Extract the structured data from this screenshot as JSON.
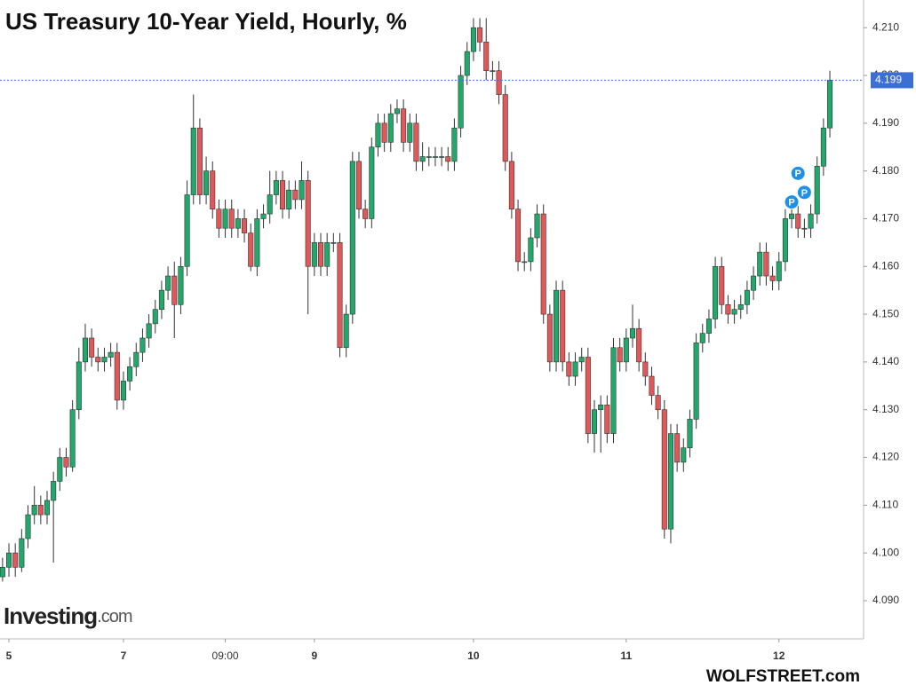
{
  "chart_data": {
    "type": "candlestick",
    "title": "US Treasury 10-Year Yield, Hourly, %",
    "logo_main": "Investing",
    "logo_suffix": ".com",
    "credit": "WOLFSTREET.com",
    "up_color": "#21a86a",
    "down_color": "#e0585a",
    "last_line_color": "#3b6fd6",
    "xlim": [
      -0.4,
      135.3
    ],
    "xticks": [
      {
        "value": 1,
        "label": "5"
      },
      {
        "value": 19,
        "label": "7"
      },
      {
        "value": 35,
        "label": "09:00"
      },
      {
        "value": 49,
        "label": "9"
      },
      {
        "value": 74,
        "label": "10"
      },
      {
        "value": 98,
        "label": "11"
      },
      {
        "value": 122,
        "label": "12"
      }
    ],
    "ylim": [
      4.082,
      4.2158
    ],
    "yticks": [
      {
        "value": 4.09,
        "label": "4.090"
      },
      {
        "value": 4.1,
        "label": "4.100"
      },
      {
        "value": 4.11,
        "label": "4.110"
      },
      {
        "value": 4.12,
        "label": "4.120"
      },
      {
        "value": 4.13,
        "label": "4.130"
      },
      {
        "value": 4.14,
        "label": "4.140"
      },
      {
        "value": 4.15,
        "label": "4.150"
      },
      {
        "value": 4.16,
        "label": "4.160"
      },
      {
        "value": 4.17,
        "label": "4.170"
      },
      {
        "value": 4.18,
        "label": "4.180"
      },
      {
        "value": 4.19,
        "label": "4.190"
      },
      {
        "value": 4.2,
        "label": "4.200"
      },
      {
        "value": 4.21,
        "label": "4.210"
      }
    ],
    "annotations": [
      {
        "x": 124,
        "y": 4.1735,
        "text": "P"
      },
      {
        "x": 125,
        "y": 4.1795,
        "text": "P"
      },
      {
        "x": 126,
        "y": 4.1755,
        "text": "P"
      }
    ],
    "open": [
      4.095,
      4.097,
      4.1,
      4.097,
      4.103,
      4.108,
      4.11,
      4.108,
      4.111,
      4.115,
      4.12,
      4.118,
      4.13,
      4.14,
      4.145,
      4.141,
      4.14,
      4.141,
      4.142,
      4.132,
      4.136,
      4.139,
      4.142,
      4.145,
      4.148,
      4.151,
      4.155,
      4.158,
      4.152,
      4.16,
      4.175,
      4.189,
      4.175,
      4.18,
      4.172,
      4.168,
      4.172,
      4.168,
      4.17,
      4.167,
      4.16,
      4.17,
      4.171,
      4.175,
      4.178,
      4.172,
      4.176,
      4.174,
      4.178,
      4.16,
      4.165,
      4.16,
      4.165,
      4.165,
      4.143,
      4.15,
      4.182,
      4.172,
      4.17,
      4.185,
      4.19,
      4.186,
      4.192,
      4.193,
      4.186,
      4.19,
      4.182,
      4.183,
      4.183,
      4.183,
      4.183,
      4.182,
      4.189,
      4.2,
      4.205,
      4.21,
      4.207,
      4.201,
      4.201,
      4.196,
      4.182,
      4.172,
      4.161,
      4.161,
      4.166,
      4.171,
      4.15,
      4.14,
      4.155,
      4.14,
      4.137,
      4.14,
      4.141,
      4.125,
      4.13,
      4.131,
      4.125,
      4.143,
      4.14,
      4.145,
      4.147,
      4.14,
      4.137,
      4.133,
      4.13,
      4.105,
      4.125,
      4.119,
      4.122,
      4.128,
      4.144,
      4.146,
      4.149,
      4.16,
      4.152,
      4.15,
      4.151,
      4.152,
      4.155,
      4.158,
      4.163,
      4.158,
      4.157,
      4.161,
      4.17,
      4.171,
      4.168,
      4.168,
      4.171,
      4.181,
      4.189
    ],
    "high": [
      4.099,
      4.102,
      4.102,
      4.105,
      4.11,
      4.114,
      4.112,
      4.113,
      4.117,
      4.122,
      4.122,
      4.132,
      4.143,
      4.148,
      4.147,
      4.143,
      4.143,
      4.144,
      4.144,
      4.138,
      4.141,
      4.144,
      4.147,
      4.15,
      4.153,
      4.157,
      4.16,
      4.161,
      4.162,
      4.178,
      4.196,
      4.191,
      4.183,
      4.182,
      4.174,
      4.174,
      4.174,
      4.172,
      4.172,
      4.169,
      4.172,
      4.173,
      4.18,
      4.18,
      4.18,
      4.178,
      4.178,
      4.182,
      4.18,
      4.167,
      4.167,
      4.167,
      4.167,
      4.167,
      4.152,
      4.184,
      4.184,
      4.174,
      4.187,
      4.192,
      4.192,
      4.194,
      4.195,
      4.195,
      4.192,
      4.192,
      4.186,
      4.185,
      4.185,
      4.185,
      4.185,
      4.191,
      4.202,
      4.207,
      4.212,
      4.212,
      4.212,
      4.203,
      4.203,
      4.198,
      4.184,
      4.174,
      4.163,
      4.168,
      4.173,
      4.173,
      4.152,
      4.157,
      4.157,
      4.142,
      4.142,
      4.143,
      4.143,
      4.132,
      4.133,
      4.133,
      4.145,
      4.145,
      4.147,
      4.152,
      4.149,
      4.142,
      4.139,
      4.135,
      4.132,
      4.127,
      4.127,
      4.124,
      4.13,
      4.146,
      4.148,
      4.151,
      4.162,
      4.162,
      4.154,
      4.153,
      4.154,
      4.157,
      4.16,
      4.165,
      4.165,
      4.16,
      4.163,
      4.172,
      4.174,
      4.174,
      4.17,
      4.173,
      4.183,
      4.191,
      4.201
    ],
    "low": [
      4.094,
      4.095,
      4.095,
      4.096,
      4.101,
      4.106,
      4.106,
      4.106,
      4.098,
      4.113,
      4.116,
      4.117,
      4.128,
      4.138,
      4.139,
      4.138,
      4.138,
      4.139,
      4.13,
      4.13,
      4.134,
      4.137,
      4.14,
      4.143,
      4.146,
      4.149,
      4.153,
      4.145,
      4.15,
      4.158,
      4.173,
      4.173,
      4.173,
      4.17,
      4.166,
      4.166,
      4.166,
      4.166,
      4.165,
      4.159,
      4.158,
      4.168,
      4.169,
      4.173,
      4.17,
      4.17,
      4.172,
      4.172,
      4.15,
      4.158,
      4.158,
      4.158,
      4.163,
      4.141,
      4.141,
      4.148,
      4.17,
      4.168,
      4.168,
      4.183,
      4.184,
      4.184,
      4.19,
      4.184,
      4.184,
      4.18,
      4.18,
      4.181,
      4.181,
      4.181,
      4.18,
      4.18,
      4.187,
      4.198,
      4.203,
      4.205,
      4.199,
      4.199,
      4.194,
      4.18,
      4.17,
      4.159,
      4.159,
      4.159,
      4.164,
      4.148,
      4.138,
      4.138,
      4.138,
      4.135,
      4.135,
      4.138,
      4.123,
      4.121,
      4.121,
      4.123,
      4.123,
      4.138,
      4.138,
      4.143,
      4.138,
      4.135,
      4.131,
      4.128,
      4.103,
      4.102,
      4.117,
      4.117,
      4.12,
      4.126,
      4.142,
      4.144,
      4.147,
      4.15,
      4.148,
      4.148,
      4.149,
      4.15,
      4.153,
      4.156,
      4.156,
      4.155,
      4.155,
      4.159,
      4.168,
      4.166,
      4.166,
      4.166,
      4.169,
      4.179,
      4.187
    ],
    "close": [
      4.097,
      4.1,
      4.097,
      4.103,
      4.108,
      4.11,
      4.108,
      4.111,
      4.115,
      4.12,
      4.118,
      4.13,
      4.14,
      4.145,
      4.141,
      4.14,
      4.141,
      4.142,
      4.132,
      4.136,
      4.139,
      4.142,
      4.145,
      4.148,
      4.151,
      4.155,
      4.158,
      4.152,
      4.16,
      4.175,
      4.189,
      4.175,
      4.18,
      4.172,
      4.168,
      4.172,
      4.168,
      4.17,
      4.167,
      4.16,
      4.17,
      4.171,
      4.175,
      4.178,
      4.172,
      4.176,
      4.174,
      4.178,
      4.16,
      4.165,
      4.16,
      4.165,
      4.165,
      4.143,
      4.15,
      4.182,
      4.172,
      4.17,
      4.185,
      4.19,
      4.186,
      4.192,
      4.193,
      4.186,
      4.19,
      4.182,
      4.183,
      4.183,
      4.183,
      4.183,
      4.182,
      4.189,
      4.2,
      4.205,
      4.21,
      4.207,
      4.201,
      4.201,
      4.196,
      4.182,
      4.172,
      4.161,
      4.161,
      4.166,
      4.171,
      4.15,
      4.14,
      4.155,
      4.14,
      4.137,
      4.14,
      4.141,
      4.125,
      4.13,
      4.131,
      4.125,
      4.143,
      4.14,
      4.145,
      4.147,
      4.14,
      4.137,
      4.133,
      4.13,
      4.105,
      4.125,
      4.119,
      4.122,
      4.128,
      4.144,
      4.146,
      4.149,
      4.16,
      4.152,
      4.15,
      4.151,
      4.152,
      4.155,
      4.158,
      4.163,
      4.158,
      4.157,
      4.161,
      4.17,
      4.171,
      4.168,
      4.168,
      4.171,
      4.181,
      4.189,
      4.199
    ]
  }
}
